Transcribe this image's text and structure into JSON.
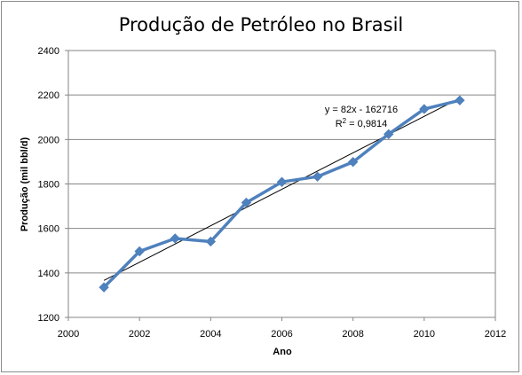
{
  "chart_data": {
    "type": "scatter",
    "title": "Produção de Petróleo no Brasil",
    "xlabel": "Ano",
    "ylabel": "Produção  (mil bbl/d)",
    "xlim": [
      2000,
      2012
    ],
    "ylim": [
      1200,
      2400
    ],
    "xticks": [
      2000,
      2002,
      2004,
      2006,
      2008,
      2010,
      2012
    ],
    "yticks": [
      1200,
      1400,
      1600,
      1800,
      2000,
      2200,
      2400
    ],
    "grid": {
      "horizontal": true,
      "vertical": false
    },
    "colors": {
      "series": "#4f81bd",
      "trendline": "#000000",
      "grid": "#868686"
    },
    "series": [
      {
        "marker": "diamond",
        "connected": true,
        "x": [
          2001,
          2002,
          2003,
          2004,
          2005,
          2006,
          2007,
          2008,
          2009,
          2010,
          2011
        ],
        "y": [
          1335,
          1497,
          1555,
          1541,
          1716,
          1809,
          1833,
          1899,
          2024,
          2137,
          2176
        ]
      }
    ],
    "trendline": {
      "type": "linear",
      "slope": 82,
      "intercept": -162716,
      "x_range": [
        2001,
        2011
      ],
      "equation": "y = 82x - 162716",
      "r2_label": "R",
      "r2_sup": "2",
      "r2_value": " = 0,9814"
    }
  }
}
